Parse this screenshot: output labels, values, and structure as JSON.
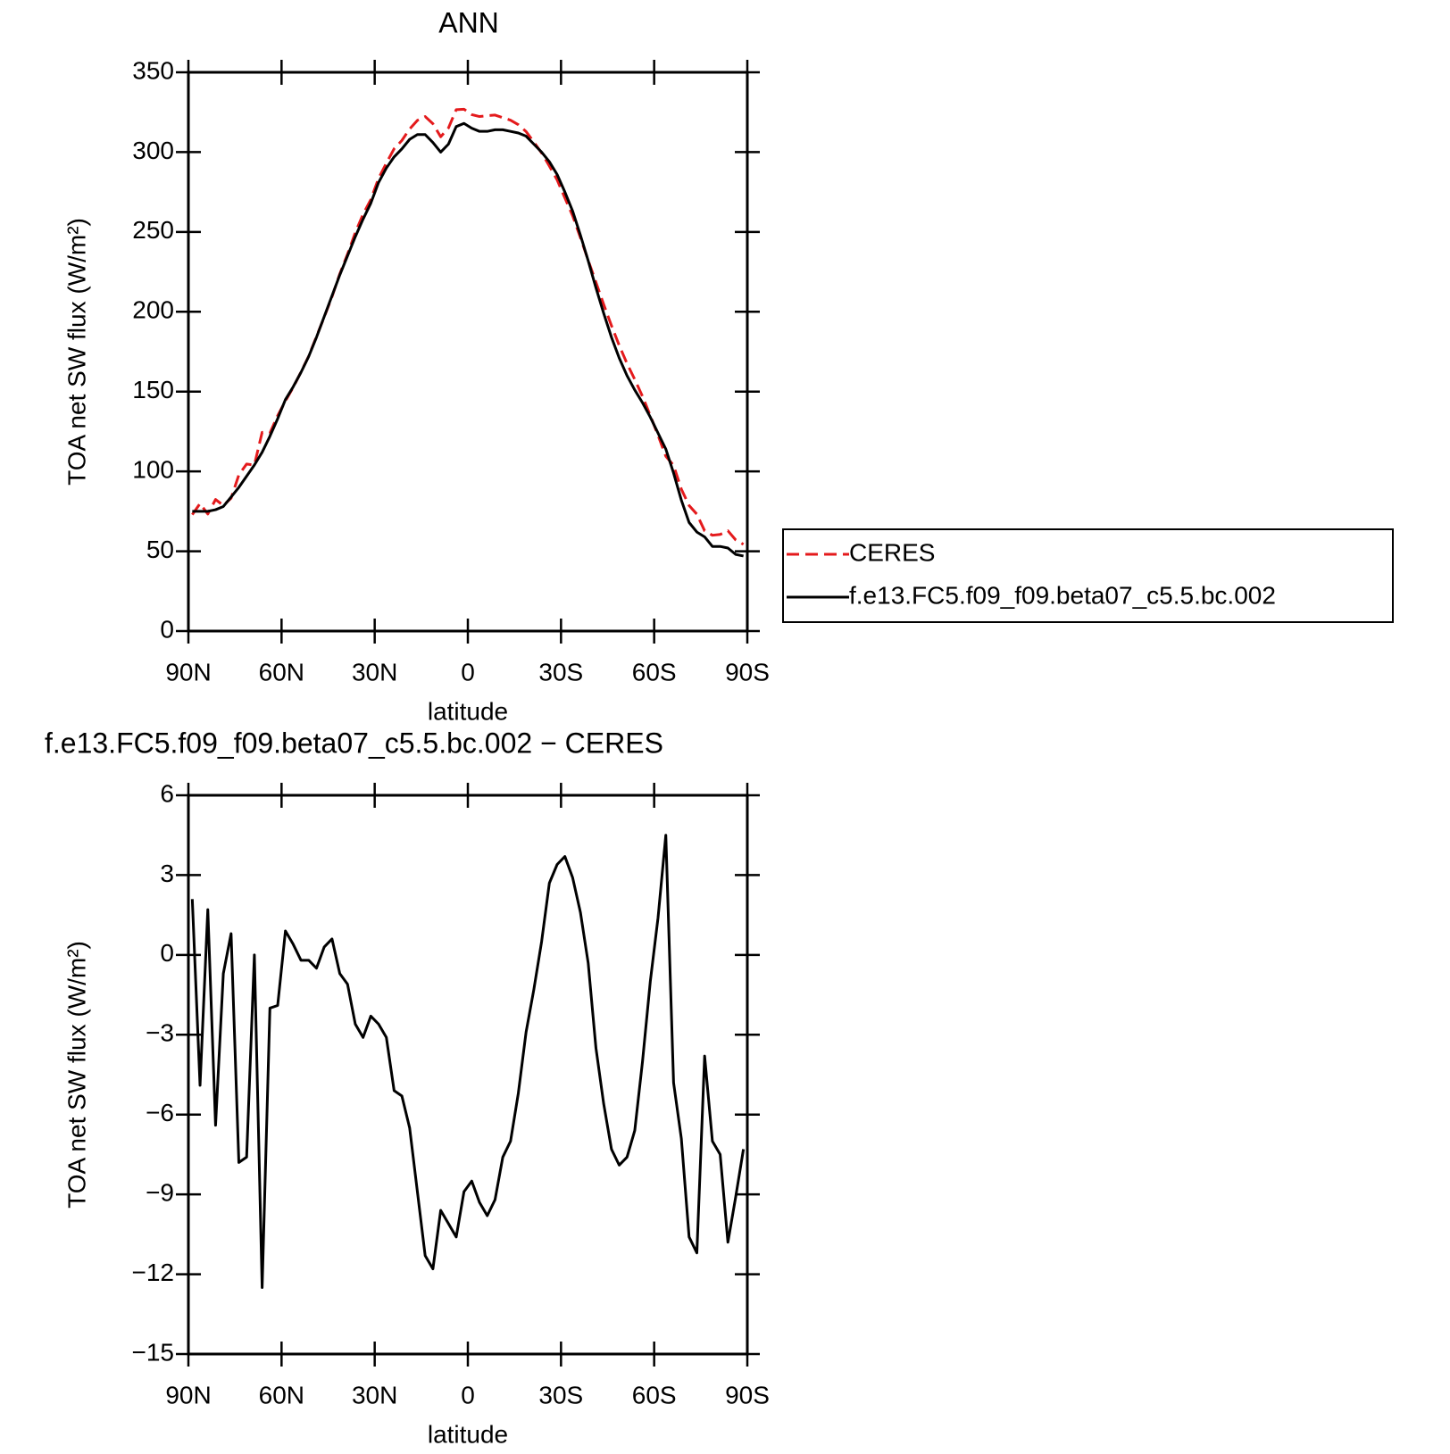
{
  "chart_data": [
    {
      "type": "line",
      "title": "ANN",
      "xlabel": "latitude",
      "ylabel": "TOA net SW flux (W/m²)",
      "x": [
        88.75,
        86.25,
        83.75,
        81.25,
        78.75,
        76.25,
        73.75,
        71.25,
        68.75,
        66.25,
        63.75,
        61.25,
        58.75,
        56.25,
        53.75,
        51.25,
        48.75,
        46.25,
        43.75,
        41.25,
        38.75,
        36.25,
        33.75,
        31.25,
        28.75,
        26.25,
        23.75,
        21.25,
        18.75,
        16.25,
        13.75,
        11.25,
        8.75,
        6.25,
        3.75,
        1.25,
        -1.25,
        -3.75,
        -6.25,
        -8.75,
        -11.25,
        -13.75,
        -16.25,
        -18.75,
        -21.25,
        -23.75,
        -26.25,
        -28.75,
        -31.25,
        -33.75,
        -36.25,
        -38.75,
        -41.25,
        -43.75,
        -46.25,
        -48.75,
        -51.25,
        -53.75,
        -56.25,
        -58.75,
        -61.25,
        -63.75,
        -66.25,
        -68.75,
        -71.25,
        -73.75,
        -76.25,
        -78.75,
        -81.25,
        -83.75,
        -86.25,
        -88.75
      ],
      "series": [
        {
          "name": "CERES",
          "color": "#e41a1c",
          "dashed": true,
          "values": [
            72.9,
            79.9,
            73.3,
            82.4,
            78.7,
            83.2,
            97.8,
            104.6,
            104,
            124.5,
            124,
            134.9,
            144.1,
            152.6,
            162.2,
            172.2,
            184.5,
            196.7,
            209.4,
            223.7,
            236.1,
            249.6,
            261.1,
            270.3,
            283.6,
            293.1,
            302.1,
            307.3,
            314.5,
            319.9,
            322.3,
            317.8,
            309.6,
            315.1,
            326.6,
            326.9,
            323.5,
            322.3,
            322.8,
            323.2,
            321.6,
            320,
            317.2,
            312.9,
            306.3,
            299.5,
            291.3,
            282.6,
            271.3,
            260.1,
            246.4,
            232.3,
            218.5,
            204.6,
            191.3,
            178.9,
            167.6,
            157.6,
            147,
            135,
            122.6,
            109.5,
            103.8,
            88.9,
            78.6,
            73.2,
            62.8,
            60,
            60.5,
            62.8,
            57.1,
            54.3
          ]
        },
        {
          "name": "f.e13.FC5.f09_f09.beta07_c5.5.bc.002",
          "color": "#000000",
          "dashed": false,
          "values": [
            75,
            75,
            75,
            76,
            78,
            84,
            90,
            97,
            104,
            112,
            122,
            133,
            145,
            153,
            162,
            172,
            184,
            197,
            210,
            223,
            235,
            247,
            258,
            268,
            281,
            290,
            297,
            302,
            308,
            311,
            311,
            306,
            300,
            305,
            316,
            318,
            315,
            313,
            313,
            314,
            314,
            313,
            312,
            310,
            305,
            300,
            294,
            286,
            275,
            263,
            248,
            232,
            215,
            199,
            184,
            171,
            160,
            151,
            143,
            134,
            124,
            114,
            99,
            82,
            68,
            62,
            59,
            53,
            53,
            52,
            48,
            47
          ]
        }
      ],
      "xlim": [
        90,
        -90
      ],
      "xticks": [
        {
          "value": 90,
          "label": "90N"
        },
        {
          "value": 60,
          "label": "60N"
        },
        {
          "value": 30,
          "label": "30N"
        },
        0,
        {
          "value": -30,
          "label": "30S"
        },
        {
          "value": -60,
          "label": "60S"
        },
        {
          "value": -90,
          "label": "90S"
        }
      ],
      "ylim": [
        0,
        350
      ],
      "yticks": [
        0,
        50,
        100,
        150,
        200,
        250,
        300,
        350
      ],
      "legend": "right"
    },
    {
      "type": "line",
      "title": "f.e13.FC5.f09_f09.beta07_c5.5.bc.002 − CERES",
      "xlabel": "latitude",
      "ylabel": "TOA net SW flux (W/m²)",
      "x": [
        88.75,
        86.25,
        83.75,
        81.25,
        78.75,
        76.25,
        73.75,
        71.25,
        68.75,
        66.25,
        63.75,
        61.25,
        58.75,
        56.25,
        53.75,
        51.25,
        48.75,
        46.25,
        43.75,
        41.25,
        38.75,
        36.25,
        33.75,
        31.25,
        28.75,
        26.25,
        23.75,
        21.25,
        18.75,
        16.25,
        13.75,
        11.25,
        8.75,
        6.25,
        3.75,
        1.25,
        -1.25,
        -3.75,
        -6.25,
        -8.75,
        -11.25,
        -13.75,
        -16.25,
        -18.75,
        -21.25,
        -23.75,
        -26.25,
        -28.75,
        -31.25,
        -33.75,
        -36.25,
        -38.75,
        -41.25,
        -43.75,
        -46.25,
        -48.75,
        -51.25,
        -53.75,
        -56.25,
        -58.75,
        -61.25,
        -63.75,
        -66.25,
        -68.75,
        -71.25,
        -73.75,
        -76.25,
        -78.75,
        -81.25,
        -83.75,
        -86.25,
        -88.75
      ],
      "series": [
        {
          "color": "#000000",
          "dashed": false,
          "values": [
            2.1,
            -4.9,
            1.7,
            -6.4,
            -0.7,
            0.8,
            -7.8,
            -7.6,
            0.0,
            -12.5,
            -2.0,
            -1.9,
            0.9,
            0.4,
            -0.2,
            -0.2,
            -0.5,
            0.3,
            0.6,
            -0.7,
            -1.1,
            -2.6,
            -3.1,
            -2.3,
            -2.6,
            -3.1,
            -5.1,
            -5.3,
            -6.5,
            -8.9,
            -11.3,
            -11.8,
            -9.6,
            -10.1,
            -10.6,
            -8.9,
            -8.5,
            -9.3,
            -9.8,
            -9.2,
            -7.6,
            -7.0,
            -5.2,
            -2.9,
            -1.3,
            0.5,
            2.7,
            3.4,
            3.7,
            2.9,
            1.6,
            -0.3,
            -3.5,
            -5.6,
            -7.3,
            -7.9,
            -7.6,
            -6.6,
            -4.0,
            -1.0,
            1.4,
            4.5,
            -4.8,
            -6.9,
            -10.6,
            -11.2,
            -3.8,
            -7.0,
            -7.5,
            -10.8,
            -9.1,
            -7.3
          ]
        }
      ],
      "xlim": [
        90,
        -90
      ],
      "xticks": [
        {
          "value": 90,
          "label": "90N"
        },
        {
          "value": 60,
          "label": "60N"
        },
        {
          "value": 30,
          "label": "30N"
        },
        0,
        {
          "value": -30,
          "label": "30S"
        },
        {
          "value": -60,
          "label": "60S"
        },
        {
          "value": -90,
          "label": "90S"
        }
      ],
      "ylim": [
        -15,
        6
      ],
      "yticks": [
        {
          "value": -15,
          "label": "−15"
        },
        {
          "value": -12,
          "label": "−12"
        },
        {
          "value": -9,
          "label": "−9"
        },
        {
          "value": -6,
          "label": "−6"
        },
        {
          "value": -3,
          "label": "−3"
        },
        0,
        3,
        6
      ]
    }
  ]
}
